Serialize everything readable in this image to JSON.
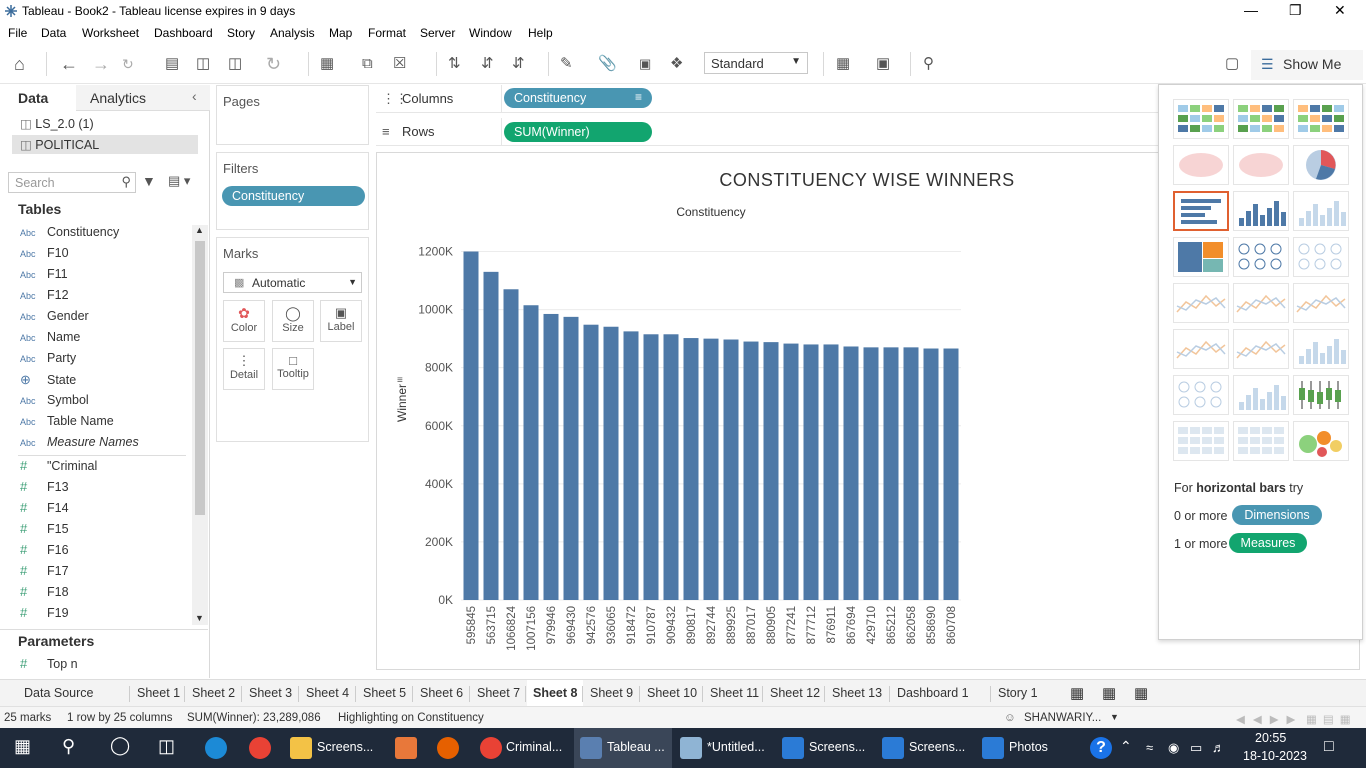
{
  "window": {
    "title": "Tableau - Book2 - Tableau license expires in 9 days"
  },
  "menu": [
    "File",
    "Data",
    "Worksheet",
    "Dashboard",
    "Story",
    "Analysis",
    "Map",
    "Format",
    "Server",
    "Window",
    "Help"
  ],
  "toolbar": {
    "fit_select": "Standard",
    "show_me": "Show Me"
  },
  "datapane": {
    "tab_data": "Data",
    "tab_analytics": "Analytics",
    "sources": [
      "LS_2.0 (1)",
      "POLITICAL"
    ],
    "search_placeholder": "Search",
    "tables_heading": "Tables",
    "dimensions": [
      {
        "type": "Abc",
        "name": "Constituency"
      },
      {
        "type": "Abc",
        "name": "F10"
      },
      {
        "type": "Abc",
        "name": "F11"
      },
      {
        "type": "Abc",
        "name": "F12"
      },
      {
        "type": "Abc",
        "name": "Gender"
      },
      {
        "type": "Abc",
        "name": "Name"
      },
      {
        "type": "Abc",
        "name": "Party"
      },
      {
        "type": "globe",
        "name": "State"
      },
      {
        "type": "Abc",
        "name": "Symbol"
      },
      {
        "type": "Abc",
        "name": "Table Name"
      },
      {
        "type": "Abc",
        "name": "Measure Names"
      }
    ],
    "measures": [
      "\"Criminal",
      "F13",
      "F14",
      "F15",
      "F16",
      "F17",
      "F18",
      "F19"
    ],
    "parameters_heading": "Parameters",
    "parameters": [
      "Top n"
    ]
  },
  "shelves": {
    "pages": "Pages",
    "filters": "Filters",
    "filter_pill": "Constituency",
    "columns_label": "Columns",
    "columns_pill": "Constituency",
    "rows_label": "Rows",
    "rows_pill": "SUM(Winner)"
  },
  "marks": {
    "title": "Marks",
    "type": "Automatic",
    "buttons": [
      "Color",
      "Size",
      "Label",
      "Detail",
      "Tooltip"
    ]
  },
  "chart_data": {
    "type": "bar",
    "title": "CONSTITUENCY WISE WINNERS",
    "xlabel": "Constituency",
    "ylabel": "Winner",
    "categories": [
      "595845",
      "563715",
      "1066824",
      "1007156",
      "979946",
      "969430",
      "942576",
      "936065",
      "918472",
      "910787",
      "909432",
      "890817",
      "892744",
      "889925",
      "887017",
      "880905",
      "877241",
      "877712",
      "876911",
      "867694",
      "429710",
      "865212",
      "862058",
      "858690",
      "860708"
    ],
    "values": [
      1200000,
      1130000,
      1070000,
      1015000,
      985000,
      975000,
      948000,
      941000,
      925000,
      915000,
      915000,
      902000,
      900000,
      897000,
      890000,
      888000,
      883000,
      880000,
      880000,
      873000,
      870000,
      870000,
      870000,
      866000,
      866000
    ],
    "ylim": [
      0,
      1250000
    ],
    "yticks": [
      0,
      200000,
      400000,
      600000,
      800000,
      1000000,
      1200000
    ],
    "ytick_labels": [
      "0K",
      "200K",
      "400K",
      "600K",
      "800K",
      "1000K",
      "1200K"
    ],
    "bar_color": "#4e79a7",
    "grid": true
  },
  "showme": {
    "hint_prefix": "For ",
    "hint_bold": "horizontal bars",
    "hint_suffix": " try",
    "dims_prefix": "0 or more",
    "dims_pill": "Dimensions",
    "meas_prefix": "1 or more",
    "meas_pill": "Measures"
  },
  "tabs": [
    "Data Source",
    "Sheet 1",
    "Sheet 2",
    "Sheet 3",
    "Sheet 4",
    "Sheet 5",
    "Sheet 6",
    "Sheet 7",
    "Sheet 8",
    "Sheet 9",
    "Sheet 10",
    "Sheet 11",
    "Sheet 12",
    "Sheet 13",
    "Dashboard 1",
    "Story 1"
  ],
  "status": {
    "marks": "25 marks",
    "rows_cols": "1 row by 25 columns",
    "sum": "SUM(Winner): 23,289,086",
    "highlight": "Highlighting on Constituency",
    "user": "SHANWARIY..."
  },
  "taskbar": {
    "items": [
      "Screens...",
      "Criminal...",
      "Tableau ...",
      "*Untitled...",
      "Screens...",
      "Screens...",
      "Photos"
    ],
    "time": "20:55",
    "date": "18-10-2023"
  }
}
